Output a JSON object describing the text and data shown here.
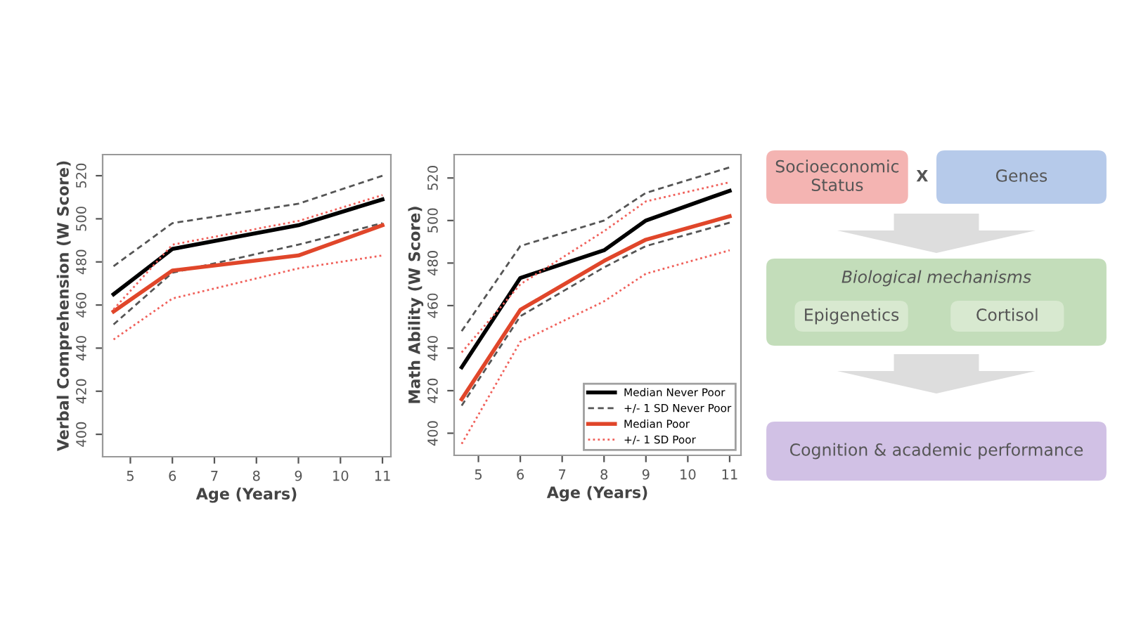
{
  "chart_data": [
    {
      "type": "line",
      "xlabel": "Age (Years)",
      "ylabel": "Verbal Comprehension (W Score)",
      "xlim": [
        4.34,
        11.2
      ],
      "ylim": [
        389.6,
        529.8
      ],
      "xticks": [
        5,
        6,
        7,
        8,
        9,
        10,
        11
      ],
      "yticks": [
        400,
        420,
        440,
        460,
        480,
        500,
        520
      ],
      "grid": false,
      "legend": false,
      "x": [
        4.6,
        6,
        9,
        11
      ],
      "series": [
        {
          "color": "#000000",
          "line_style": "solid",
          "values": [
            465,
            486,
            497,
            509
          ]
        },
        {
          "color": "#555555",
          "line_style": "dashed",
          "values": [
            478,
            498,
            507,
            520
          ]
        },
        {
          "color": "#555555",
          "line_style": "dashed",
          "values": [
            451,
            475,
            488,
            498
          ]
        },
        {
          "color": "#e0462a",
          "line_style": "solid",
          "values": [
            457,
            476,
            483,
            497
          ]
        },
        {
          "color": "#f0605a",
          "line_style": "dotted",
          "values": [
            458,
            488,
            499,
            511
          ]
        },
        {
          "color": "#f0605a",
          "line_style": "dotted",
          "values": [
            444,
            463,
            477,
            483
          ]
        }
      ]
    },
    {
      "type": "line",
      "xlabel": "Age (Years)",
      "ylabel": "Math Ability (W Score)",
      "xlim": [
        4.42,
        11.27
      ],
      "ylim": [
        389.6,
        531
      ],
      "xticks": [
        5,
        6,
        7,
        8,
        9,
        10,
        11
      ],
      "yticks": [
        400,
        420,
        440,
        460,
        480,
        500,
        520
      ],
      "grid": false,
      "legend": "bottom right",
      "x": [
        4.6,
        6,
        8,
        9,
        11
      ],
      "series": [
        {
          "name": "Median Never Poor",
          "color": "#000000",
          "line_style": "solid",
          "values": [
            431,
            473,
            486,
            500,
            514
          ]
        },
        {
          "name": "+/- 1 SD Never Poor",
          "color": "#555555",
          "line_style": "dashed",
          "values": [
            448,
            488,
            500,
            513,
            525
          ]
        },
        {
          "color": "#555555",
          "line_style": "dashed",
          "values": [
            413,
            455,
            478,
            488,
            499
          ]
        },
        {
          "name": "Median Poor",
          "color": "#e0462a",
          "line_style": "solid",
          "values": [
            416,
            458,
            481,
            491,
            502
          ]
        },
        {
          "name": "+/- 1 SD Poor",
          "color": "#f0605a",
          "line_style": "dotted",
          "values": [
            438,
            470,
            495,
            509,
            518
          ]
        },
        {
          "color": "#f0605a",
          "line_style": "dotted",
          "values": [
            395,
            443,
            462,
            475,
            486
          ]
        }
      ]
    },
    {
      "type": "other",
      "annotations": [
        "Socioeconomic\nStatus",
        "X",
        "Genes",
        "Biological mechanisms",
        "Epigenetics",
        "Cortisol",
        "Cognition & academic performance"
      ]
    }
  ]
}
